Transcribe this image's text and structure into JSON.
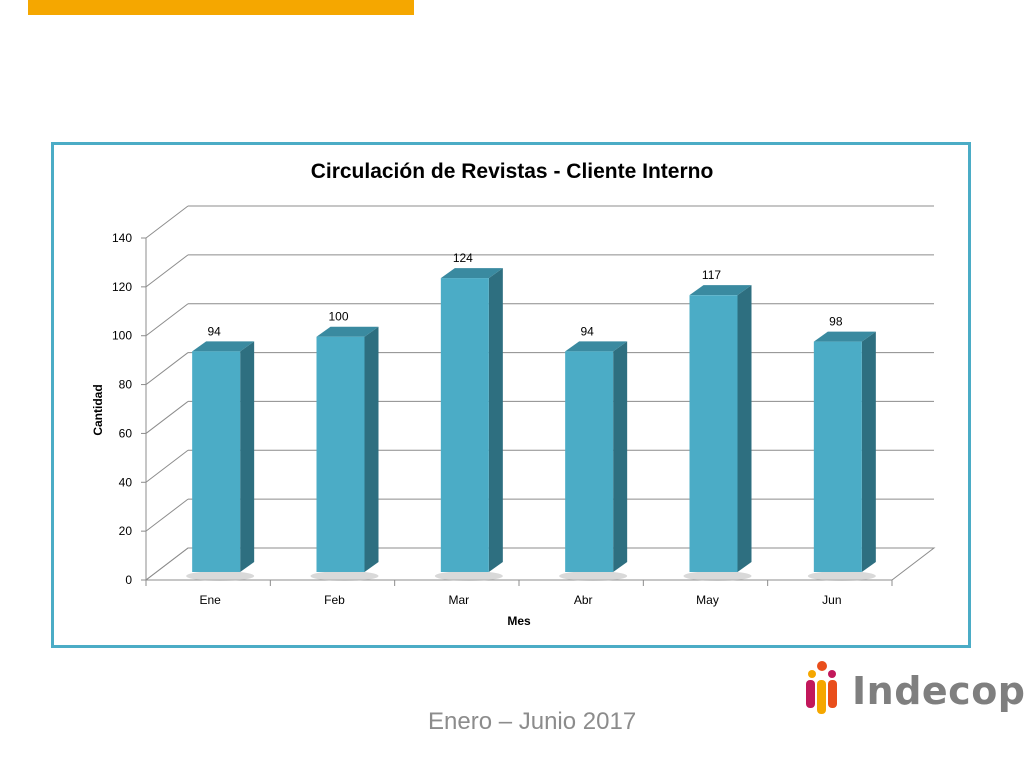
{
  "header": {
    "accent_color": "#f5a700"
  },
  "chart_data": {
    "type": "bar",
    "title": "Circulación de Revistas - Cliente Interno",
    "xlabel": "Mes",
    "ylabel": "Cantidad",
    "categories": [
      "Ene",
      "Feb",
      "Mar",
      "Abr",
      "May",
      "Jun"
    ],
    "values": [
      94,
      100,
      124,
      94,
      117,
      98
    ],
    "ylim": [
      0,
      140
    ],
    "yticks": [
      "0",
      "20",
      "40",
      "60",
      "80",
      "100",
      "120",
      "140"
    ],
    "grid": true,
    "style": "3d-column",
    "bar_color": "#4bacc6",
    "border_color": "#4bacc6"
  },
  "footer": {
    "date_range": "Enero – Junio 2017"
  },
  "logo": {
    "text": "Indecopi",
    "icon": "indecopi-logo-icon"
  }
}
